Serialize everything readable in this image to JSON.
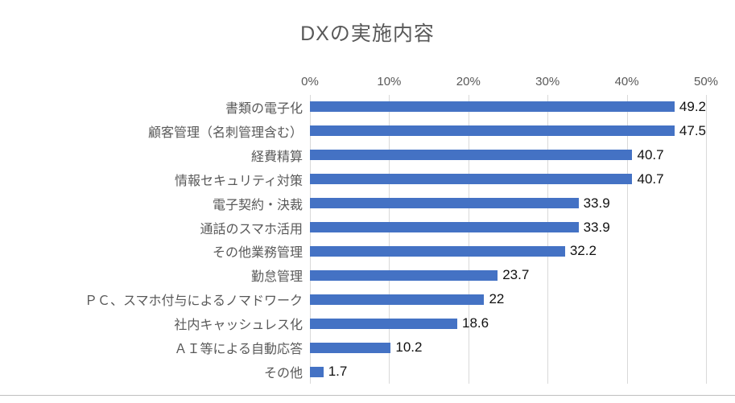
{
  "chart_data": {
    "type": "bar",
    "orientation": "horizontal",
    "title": "DXの実施内容",
    "categories": [
      "書類の電子化",
      "顧客管理（名刺管理含む）",
      "経費精算",
      "情報セキュリティ対策",
      "電子契約・決裁",
      "通話のスマホ活用",
      "その他業務管理",
      "勤怠管理",
      "ＰＣ、スマホ付与によるノマドワーク",
      "社内キャッシュレス化",
      "ＡＩ等による自動応答",
      "その他"
    ],
    "values": [
      49.2,
      47.5,
      40.7,
      40.7,
      33.9,
      33.9,
      32.2,
      23.7,
      22,
      18.6,
      10.2,
      1.7
    ],
    "value_labels": [
      "49.2",
      "47.5",
      "40.7",
      "40.7",
      "33.9",
      "33.9",
      "32.2",
      "23.7",
      "22",
      "18.6",
      "10.2",
      "1.7"
    ],
    "x_ticks": [
      "0%",
      "10%",
      "20%",
      "30%",
      "40%",
      "50%"
    ],
    "xlim": [
      0,
      50
    ],
    "grid": true,
    "legend": "none",
    "bar_color": "#4472c4",
    "gridline_color": "#d9d9d9"
  }
}
